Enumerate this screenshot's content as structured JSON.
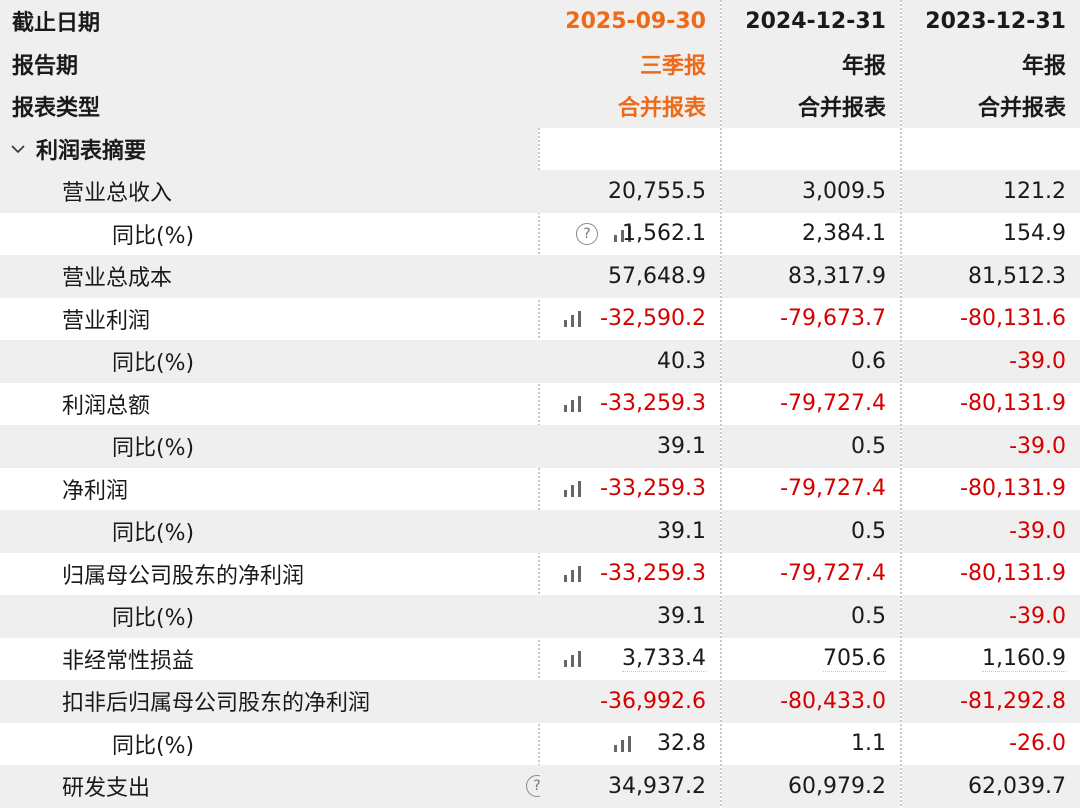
{
  "header": {
    "date_label": "截止日期",
    "period_label": "报告期",
    "type_label": "报表类型",
    "columns": [
      {
        "date": "2025-09-30",
        "period": "三季报",
        "type": "合并报表"
      },
      {
        "date": "2024-12-31",
        "period": "年报",
        "type": "合并报表"
      },
      {
        "date": "2023-12-31",
        "period": "年报",
        "type": "合并报表"
      }
    ]
  },
  "section": {
    "label": "利润表摘要"
  },
  "rows": [
    {
      "label": "营业总收入",
      "v": [
        "20,755.5",
        "3,009.5",
        "121.2"
      ]
    },
    {
      "label": "同比(%)",
      "v": [
        "1,562.1",
        "2,384.1",
        "154.9"
      ]
    },
    {
      "label": "营业总成本",
      "v": [
        "57,648.9",
        "83,317.9",
        "81,512.3"
      ]
    },
    {
      "label": "营业利润",
      "v": [
        "-32,590.2",
        "-79,673.7",
        "-80,131.6"
      ]
    },
    {
      "label": "同比(%)",
      "v": [
        "40.3",
        "0.6",
        "-39.0"
      ]
    },
    {
      "label": "利润总额",
      "v": [
        "-33,259.3",
        "-79,727.4",
        "-80,131.9"
      ]
    },
    {
      "label": "同比(%)",
      "v": [
        "39.1",
        "0.5",
        "-39.0"
      ]
    },
    {
      "label": "净利润",
      "v": [
        "-33,259.3",
        "-79,727.4",
        "-80,131.9"
      ]
    },
    {
      "label": "同比(%)",
      "v": [
        "39.1",
        "0.5",
        "-39.0"
      ]
    },
    {
      "label": "归属母公司股东的净利润",
      "v": [
        "-33,259.3",
        "-79,727.4",
        "-80,131.9"
      ]
    },
    {
      "label": "同比(%)",
      "v": [
        "39.1",
        "0.5",
        "-39.0"
      ]
    },
    {
      "label": "非经常性损益",
      "v": [
        "3,733.4",
        "705.6",
        "1,160.9"
      ]
    },
    {
      "label": "扣非后归属母公司股东的净利润",
      "v": [
        "-36,992.6",
        "-80,433.0",
        "-81,292.8"
      ]
    },
    {
      "label": "同比(%)",
      "v": [
        "32.8",
        "1.1",
        "-26.0"
      ]
    },
    {
      "label": "研发支出",
      "v": [
        "34,937.2",
        "60,979.2",
        "62,039.7"
      ]
    }
  ],
  "icons": {
    "help": "question-circle-icon",
    "chart": "bar-chart-icon",
    "help_glyph": "?"
  },
  "colors": {
    "accent": "#ee6a17",
    "negative": "#d40000",
    "row_shade": "#efefef"
  }
}
